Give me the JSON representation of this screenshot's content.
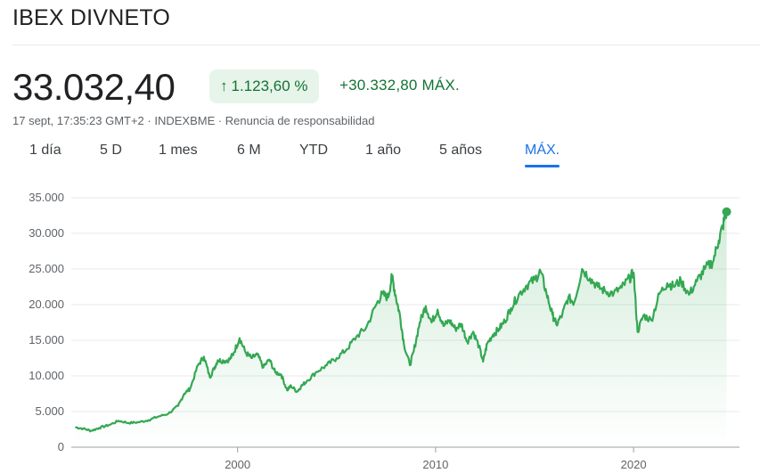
{
  "header": {
    "title": "IBEX DIVNETO"
  },
  "quote": {
    "price": "33.032,40",
    "pct_change": "1.123,60 %",
    "abs_change": "+30.332,80",
    "period_label": "MÁX.",
    "meta": "17 sept, 17:35:23 GMT+2 · INDEXBME · Renuncia de responsabilidad"
  },
  "tabs": [
    {
      "label": "1 día"
    },
    {
      "label": "5 D"
    },
    {
      "label": "1 mes"
    },
    {
      "label": "6 M"
    },
    {
      "label": "YTD"
    },
    {
      "label": "1 año"
    },
    {
      "label": "5 años"
    },
    {
      "label": "MÁX.",
      "active": true
    }
  ],
  "colors": {
    "line": "#34a853",
    "accent": "#1a73e8",
    "positive": "#137333",
    "badge_bg": "#e6f4ea"
  },
  "icons": {
    "badge_arrow": "arrow-up-icon"
  },
  "chart_data": {
    "type": "area",
    "title": "",
    "xlabel": "",
    "ylabel": "",
    "xlim": [
      1991.6,
      2024.9
    ],
    "ylim": [
      0,
      35000
    ],
    "yticks": [
      0,
      5000,
      10000,
      15000,
      20000,
      25000,
      30000,
      35000
    ],
    "ytick_labels": [
      "0",
      "5.000",
      "10.000",
      "15.000",
      "20.000",
      "25.000",
      "30.000",
      "35.000"
    ],
    "xticks": [
      2000,
      2010,
      2020
    ],
    "xtick_labels": [
      "2000",
      "2010",
      "2020"
    ],
    "grid": true,
    "series": [
      {
        "x": [
          1991.8,
          1992.2,
          1992.6,
          1993.0,
          1993.5,
          1994.0,
          1994.5,
          1995.0,
          1995.5,
          1996.0,
          1996.5,
          1997.0,
          1997.3,
          1997.6,
          1998.0,
          1998.3,
          1998.6,
          1998.8,
          1999.0,
          1999.3,
          1999.6,
          1999.8,
          2000.1,
          2000.4,
          2000.7,
          2001.0,
          2001.3,
          2001.6,
          2001.9,
          2002.2,
          2002.5,
          2002.7,
          2003.0,
          2003.2,
          2003.5,
          2004.0,
          2004.5,
          2005.0,
          2005.5,
          2006.0,
          2006.5,
          2007.0,
          2007.3,
          2007.6,
          2007.8,
          2008.0,
          2008.2,
          2008.4,
          2008.7,
          2008.9,
          2009.2,
          2009.5,
          2009.8,
          2010.1,
          2010.4,
          2010.7,
          2011.0,
          2011.3,
          2011.6,
          2011.9,
          2012.2,
          2012.4,
          2012.6,
          2012.9,
          2013.2,
          2013.5,
          2013.8,
          2014.2,
          2014.6,
          2015.0,
          2015.3,
          2015.6,
          2015.9,
          2016.1,
          2016.4,
          2016.7,
          2017.0,
          2017.4,
          2017.8,
          2018.2,
          2018.6,
          2019.0,
          2019.4,
          2019.8,
          2020.0,
          2020.2,
          2020.5,
          2020.9,
          2021.3,
          2021.7,
          2022.0,
          2022.4,
          2022.8,
          2023.2,
          2023.6,
          2024.0,
          2024.3,
          2024.5,
          2024.7
        ],
        "y": [
          2800,
          2600,
          2300,
          2700,
          3100,
          3700,
          3400,
          3500,
          3800,
          4300,
          4700,
          5800,
          7500,
          8200,
          11500,
          12700,
          9800,
          11000,
          12200,
          12100,
          12300,
          13200,
          15300,
          13300,
          12500,
          13000,
          11200,
          12300,
          10500,
          10200,
          8000,
          8600,
          7800,
          8500,
          9300,
          10600,
          11500,
          12500,
          13700,
          15500,
          16800,
          20000,
          21500,
          21000,
          24000,
          21000,
          18500,
          14500,
          11500,
          13500,
          17500,
          19800,
          17500,
          19300,
          17000,
          17800,
          16600,
          17300,
          14800,
          16200,
          14100,
          12000,
          14500,
          15800,
          16600,
          17700,
          19500,
          21400,
          22700,
          23500,
          24700,
          21600,
          18600,
          17200,
          18600,
          21000,
          20300,
          25000,
          23700,
          22500,
          21800,
          21600,
          22400,
          23700,
          24500,
          16200,
          18500,
          17800,
          21500,
          23000,
          22600,
          23300,
          21400,
          23300,
          25000,
          26000,
          29000,
          31000,
          33032
        ]
      }
    ],
    "last_point": {
      "x": 2024.7,
      "y": 33032.4
    }
  }
}
